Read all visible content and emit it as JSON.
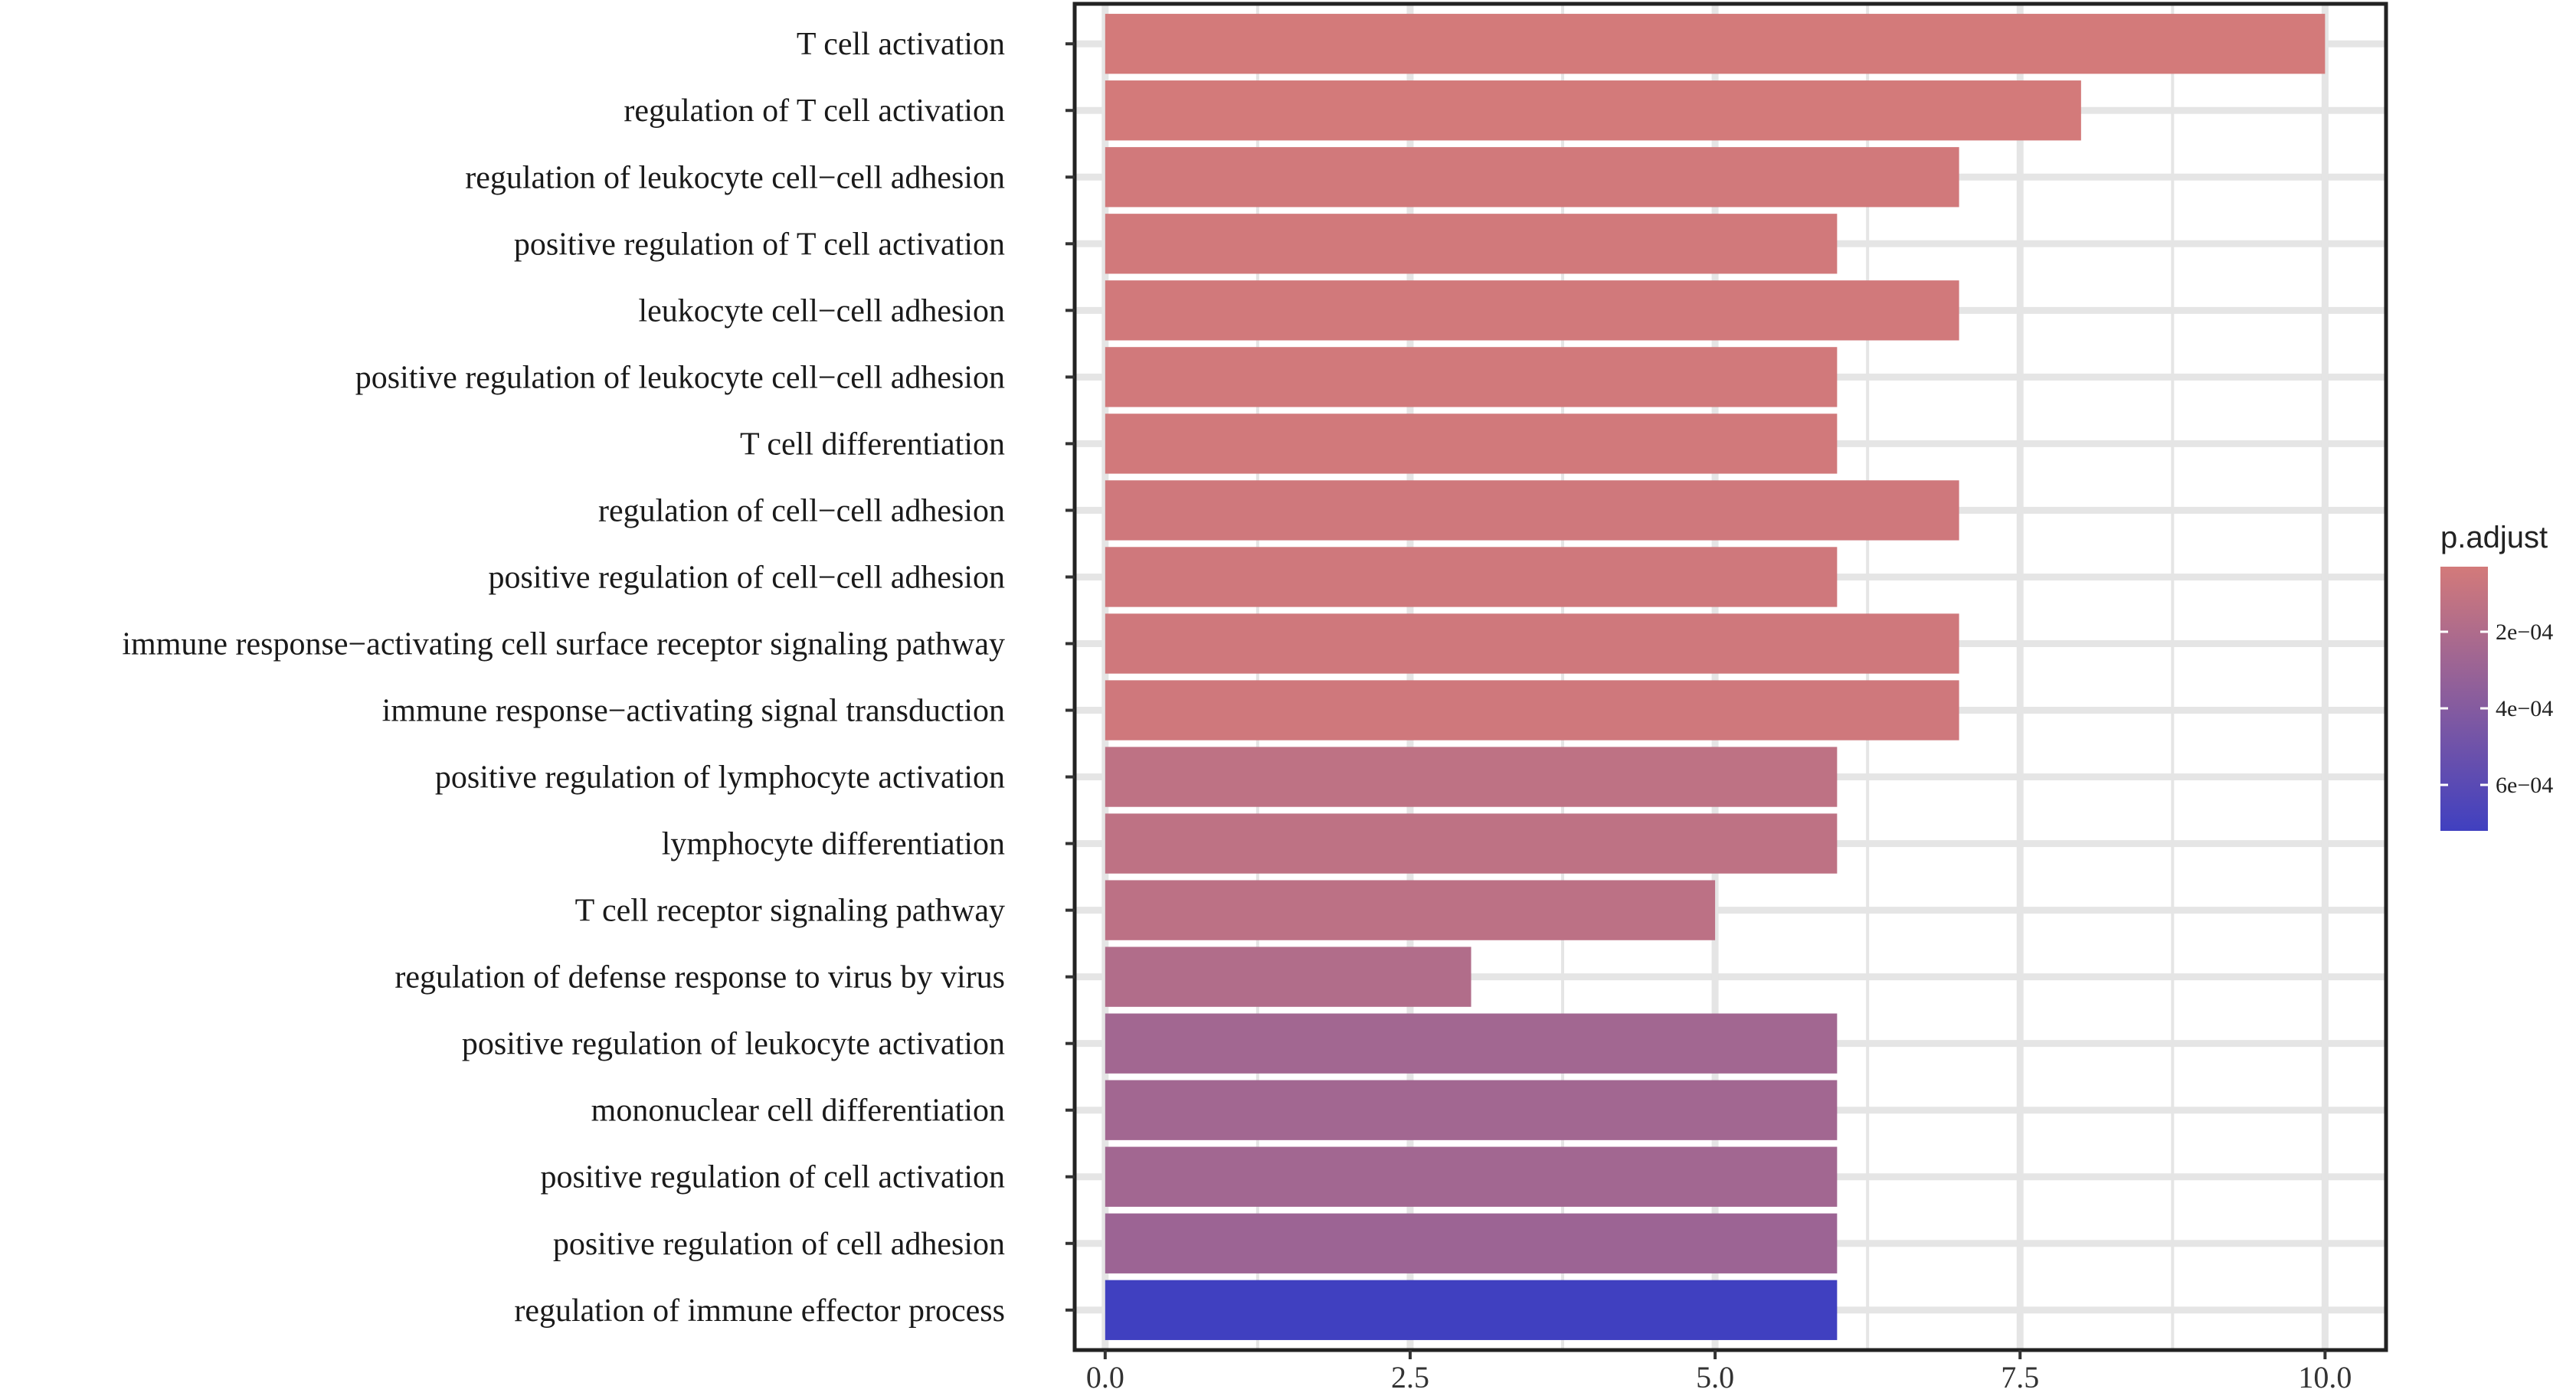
{
  "chart_data": {
    "type": "bar",
    "orientation": "horizontal",
    "title": "",
    "xlabel": "",
    "ylabel": "",
    "xlim": [
      -0.25,
      10.5
    ],
    "x_ticks": [
      0.0,
      2.5,
      5.0,
      7.5,
      10.0
    ],
    "x_tick_labels": [
      "0.0",
      "2.5",
      "5.0",
      "7.5",
      "10.0"
    ],
    "categories": [
      "T cell activation",
      "regulation of T cell activation",
      "regulation of leukocyte cell−cell adhesion",
      "positive regulation of T cell activation",
      "leukocyte cell−cell adhesion",
      "positive regulation of leukocyte cell−cell adhesion",
      "T cell differentiation",
      "regulation of cell−cell adhesion",
      "positive regulation of cell−cell adhesion",
      "immune response−activating cell surface receptor signaling pathway",
      "immune response−activating signal transduction",
      "positive regulation of lymphocyte activation",
      "lymphocyte differentiation",
      "T cell receptor signaling pathway",
      "regulation of defense response to virus by virus",
      "positive regulation of leukocyte activation",
      "mononuclear cell differentiation",
      "positive regulation of cell activation",
      "positive regulation of cell adhesion",
      "regulation of immune effector process"
    ],
    "values": [
      10,
      8,
      7,
      6,
      7,
      6,
      6,
      7,
      6,
      7,
      7,
      6,
      6,
      5,
      3,
      6,
      6,
      6,
      6,
      6
    ],
    "p_adjust": [
      3e-05,
      3e-05,
      4e-05,
      4e-05,
      4e-05,
      4e-05,
      4e-05,
      5e-05,
      5e-05,
      5e-05,
      5e-05,
      0.00013,
      0.00013,
      0.00014,
      0.00019,
      0.00026,
      0.00026,
      0.00026,
      0.00029,
      0.00072
    ],
    "legend": {
      "title": "p.adjust",
      "position": "right",
      "ticks": [
        0.0002,
        0.0004,
        0.0006
      ],
      "tick_labels": [
        "2e−04",
        "4e−04",
        "6e−04"
      ],
      "range": [
        3e-05,
        0.00072
      ],
      "color_low": "#d37a7a",
      "color_high": "#4040c0"
    },
    "grid": true
  },
  "colors": {
    "background": "#ffffff",
    "panel_border": "#222222",
    "grid": "#e5e5e5",
    "bar_low": "#d37a7a",
    "bar_high": "#4040c0"
  }
}
